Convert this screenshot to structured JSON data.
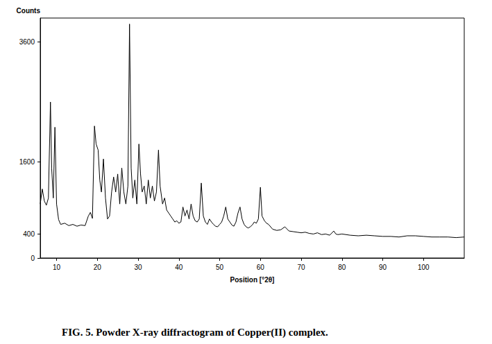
{
  "chart_data": {
    "type": "line",
    "title": "FIG. 5. Powder X-ray diffractogram of Copper(II) complex.",
    "x_label": "Position [°2θ]",
    "y_label": "Counts",
    "color": "#000000",
    "grid": false,
    "xlim": [
      6,
      110
    ],
    "xticks": [
      10,
      20,
      30,
      40,
      50,
      60,
      70,
      80,
      90,
      100
    ],
    "ylim": [
      0,
      4000
    ],
    "yticks": [
      0,
      400,
      1600,
      3600
    ],
    "x": [
      6.0,
      6.5,
      7.0,
      7.5,
      8.0,
      8.5,
      8.8,
      9.2,
      9.6,
      10.0,
      10.5,
      11,
      12,
      13,
      14,
      15,
      16,
      17,
      17.8,
      18.3,
      18.8,
      19.3,
      19.7,
      20.2,
      20.6,
      21,
      21.5,
      22,
      22.5,
      23,
      23.5,
      24,
      24.5,
      25,
      25.5,
      26,
      26.5,
      27,
      27.5,
      27.9,
      28.3,
      28.7,
      29.2,
      29.7,
      30.2,
      30.6,
      31,
      31.5,
      32,
      32.5,
      33,
      33.5,
      34,
      34.5,
      35,
      35.4,
      36,
      36.5,
      37,
      37.5,
      38,
      38.5,
      39,
      39.5,
      40,
      40.5,
      41,
      41.5,
      42,
      42.5,
      43,
      43.5,
      44,
      44.5,
      45,
      45.5,
      46,
      46.5,
      47,
      47.5,
      48,
      48.5,
      49,
      49.5,
      50,
      50.5,
      51,
      51.5,
      52,
      52.5,
      53,
      53.5,
      54,
      54.5,
      55,
      55.5,
      56,
      56.5,
      57,
      57.5,
      58,
      58.5,
      59,
      59.5,
      60,
      60.4,
      61,
      61.5,
      62,
      62.5,
      63,
      64,
      65,
      66,
      67,
      68,
      69,
      70,
      71,
      72,
      73,
      74,
      75,
      76,
      77,
      78,
      78.5,
      79,
      80,
      82,
      84,
      86,
      88,
      90,
      92,
      94,
      96,
      98,
      100,
      102,
      104,
      106,
      108,
      110
    ],
    "values": [
      900,
      1150,
      950,
      880,
      1000,
      2600,
      1500,
      1000,
      2180,
      900,
      640,
      560,
      580,
      540,
      560,
      530,
      550,
      540,
      700,
      760,
      660,
      2200,
      1900,
      1800,
      1300,
      1100,
      1650,
      1000,
      650,
      700,
      1100,
      1350,
      1100,
      1400,
      900,
      1500,
      1100,
      900,
      1200,
      3900,
      1500,
      1000,
      1300,
      900,
      1900,
      1400,
      1100,
      1200,
      900,
      1300,
      1000,
      1200,
      950,
      1100,
      1800,
      1200,
      900,
      1000,
      800,
      750,
      700,
      650,
      600,
      620,
      580,
      600,
      850,
      700,
      800,
      650,
      900,
      700,
      620,
      600,
      650,
      1250,
      700,
      600,
      560,
      650,
      600,
      560,
      530,
      520,
      560,
      600,
      700,
      850,
      650,
      600,
      550,
      530,
      600,
      750,
      850,
      650,
      560,
      520,
      500,
      520,
      550,
      600,
      580,
      650,
      1180,
      700,
      620,
      580,
      560,
      520,
      480,
      460,
      470,
      520,
      450,
      440,
      430,
      420,
      430,
      410,
      400,
      420,
      390,
      400,
      380,
      450,
      400,
      390,
      400,
      380,
      370,
      380,
      370,
      360,
      360,
      350,
      370,
      370,
      360,
      350,
      350,
      350,
      340,
      350
    ]
  }
}
